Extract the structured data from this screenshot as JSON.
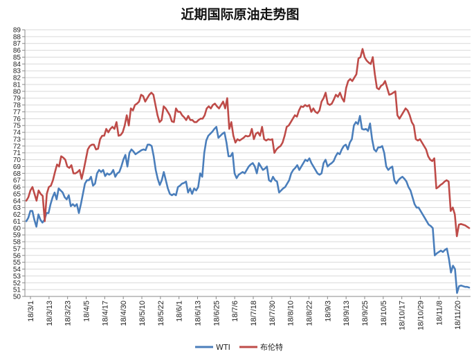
{
  "chart_data": {
    "type": "line",
    "title": "近期国际原油走势图",
    "xlabel": "",
    "ylabel": "",
    "ylim": [
      50,
      89
    ],
    "ytick_step": 1,
    "grid": "horizontal",
    "legend_position": "bottom",
    "x_ticks": [
      "18/3/1",
      "18/3/13",
      "18/3/23",
      "18/4/5",
      "18/4/17",
      "18/4/30",
      "18/5/10",
      "18/5/22",
      "18/6/1",
      "18/6/13",
      "18/6/25",
      "18/7/6",
      "18/7/18",
      "18/7/30",
      "18/8/10",
      "18/8/22",
      "18/9/3",
      "18/9/13",
      "18/9/25",
      "18/10/5",
      "18/10/17",
      "18/10/29",
      "18/11/8",
      "18/11/20"
    ],
    "colors": {
      "WTI": "#4a7ebb",
      "布伦特": "#be4b48"
    },
    "series": [
      {
        "name": "WTI",
        "values": [
          61.0,
          61.5,
          62.5,
          62.5,
          61.2,
          60.2,
          62.0,
          61.2,
          60.8,
          61.2,
          62.2,
          62.2,
          63.5,
          64.5,
          65.2,
          64.2,
          65.8,
          65.5,
          65.2,
          64.5,
          64.2,
          64.8,
          63.2,
          63.5,
          63.2,
          63.5,
          62.2,
          63.5,
          65.0,
          66.5,
          67.0,
          67.0,
          67.5,
          66.2,
          66.5,
          68.0,
          68.5,
          68.2,
          68.5,
          67.6,
          68.0,
          67.8,
          68.0,
          68.5,
          67.5,
          68.0,
          68.2,
          69.0,
          70.0,
          70.7,
          69.0,
          71.0,
          71.5,
          71.2,
          70.8,
          71.0,
          71.2,
          71.4,
          71.5,
          71.4,
          72.2,
          72.2,
          72.0,
          70.5,
          68.5,
          67.2,
          66.3,
          67.0,
          68.2,
          67.0,
          65.8,
          65.0,
          64.8,
          65.0,
          64.8,
          66.0,
          66.2,
          66.5,
          66.6,
          66.8,
          65.2,
          65.8,
          65.0,
          65.8,
          65.5,
          66.0,
          68.0,
          67.5,
          71.0,
          72.8,
          73.5,
          73.8,
          74.1,
          74.5,
          74.8,
          73.2,
          73.5,
          73.8,
          74.0,
          72.5,
          70.5,
          70.5,
          71.0,
          68.0,
          67.3,
          67.8,
          68.0,
          68.2,
          68.0,
          68.5,
          69.0,
          69.3,
          69.5,
          69.0,
          68.0,
          69.5,
          69.0,
          68.5,
          68.7,
          69.0,
          67.0,
          66.8,
          67.5,
          67.0,
          66.8,
          65.2,
          65.5,
          65.8,
          66.0,
          66.5,
          67.0,
          68.0,
          68.5,
          68.8,
          69.2,
          68.5,
          69.0,
          69.5,
          70.0,
          69.8,
          70.2,
          69.5,
          69.0,
          68.5,
          68.0,
          67.8,
          68.0,
          69.5,
          70.0,
          69.0,
          69.3,
          69.5,
          69.8,
          70.5,
          71.0,
          70.8,
          71.5,
          72.0,
          72.2,
          71.5,
          72.5,
          73.0,
          75.0,
          75.5,
          75.2,
          76.4,
          74.5,
          74.4,
          74.5,
          74.2,
          75.3,
          73.0,
          71.5,
          71.2,
          71.8,
          71.8,
          72.0,
          71.0,
          69.0,
          68.5,
          68.8,
          69.0,
          67.0,
          66.5,
          67.0,
          67.3,
          67.5,
          67.2,
          66.8,
          66.0,
          65.5,
          64.5,
          63.5,
          63.0,
          63.0,
          62.5,
          62.0,
          61.5,
          61.0,
          60.5,
          60.3,
          60.0,
          56.0,
          56.3,
          56.5,
          56.7,
          56.5,
          56.8,
          57.0,
          55.5,
          53.5,
          54.5,
          54.0,
          50.5,
          51.5,
          51.6,
          51.5,
          51.4,
          51.4,
          51.3
        ]
      },
      {
        "name": "布伦特",
        "values": [
          64.0,
          64.5,
          65.5,
          66.0,
          65.0,
          64.0,
          65.5,
          65.0,
          64.7,
          61.0,
          65.0,
          66.0,
          66.2,
          67.0,
          68.2,
          69.3,
          69.0,
          70.5,
          70.3,
          70.0,
          69.0,
          68.8,
          69.2,
          68.0,
          68.0,
          68.2,
          68.5,
          67.2,
          68.5,
          70.0,
          71.5,
          72.0,
          72.2,
          72.2,
          71.5,
          71.6,
          73.0,
          73.5,
          73.5,
          74.5,
          74.0,
          74.5,
          74.8,
          74.5,
          75.5,
          73.5,
          73.6,
          74.0,
          75.0,
          76.5,
          75.0,
          77.5,
          77.2,
          78.0,
          78.2,
          78.5,
          79.5,
          79.3,
          78.5,
          79.0,
          79.5,
          79.8,
          79.5,
          78.0,
          76.5,
          75.5,
          75.8,
          77.8,
          77.5,
          77.0,
          76.5,
          75.6,
          75.5,
          77.5,
          77.0,
          77.0,
          76.5,
          76.2,
          75.8,
          76.4,
          75.8,
          75.8,
          75.5,
          75.5,
          75.8,
          76.0,
          76.0,
          76.5,
          77.5,
          77.8,
          77.5,
          78.0,
          78.2,
          77.8,
          77.5,
          78.0,
          78.5,
          77.5,
          79.0,
          74.5,
          75.5,
          73.5,
          72.5,
          73.0,
          72.8,
          73.0,
          73.2,
          73.5,
          73.4,
          73.5,
          74.5,
          73.0,
          73.8,
          74.0,
          73.5,
          74.8,
          73.0,
          72.8,
          73.0,
          72.9,
          73.0,
          71.0,
          71.5,
          71.8,
          72.0,
          72.5,
          73.5,
          74.8,
          75.0,
          75.5,
          76.0,
          76.5,
          76.3,
          77.2,
          77.8,
          77.7,
          78.0,
          77.8,
          78.0,
          77.0,
          77.5,
          77.0,
          76.8,
          77.2,
          78.5,
          79.0,
          79.8,
          78.2,
          78.0,
          78.2,
          78.8,
          79.5,
          79.2,
          79.8,
          79.0,
          78.5,
          80.5,
          81.5,
          81.8,
          81.5,
          82.0,
          82.5,
          84.8,
          85.0,
          86.2,
          85.0,
          84.5,
          84.2,
          84.0,
          85.0,
          82.5,
          80.5,
          80.3,
          80.8,
          81.0,
          81.5,
          80.5,
          79.5,
          79.6,
          79.8,
          80.0,
          76.5,
          76.0,
          76.5,
          77.0,
          77.5,
          77.2,
          76.5,
          75.5,
          75.0,
          73.0,
          72.8,
          73.0,
          72.5,
          72.0,
          71.5,
          70.5,
          70.0,
          69.8,
          70.2,
          65.8,
          66.0,
          66.3,
          66.5,
          66.8,
          67.0,
          66.8,
          62.5,
          63.0,
          62.0,
          58.8,
          60.5,
          60.6,
          60.5,
          60.4,
          60.2,
          60.0
        ]
      }
    ]
  }
}
